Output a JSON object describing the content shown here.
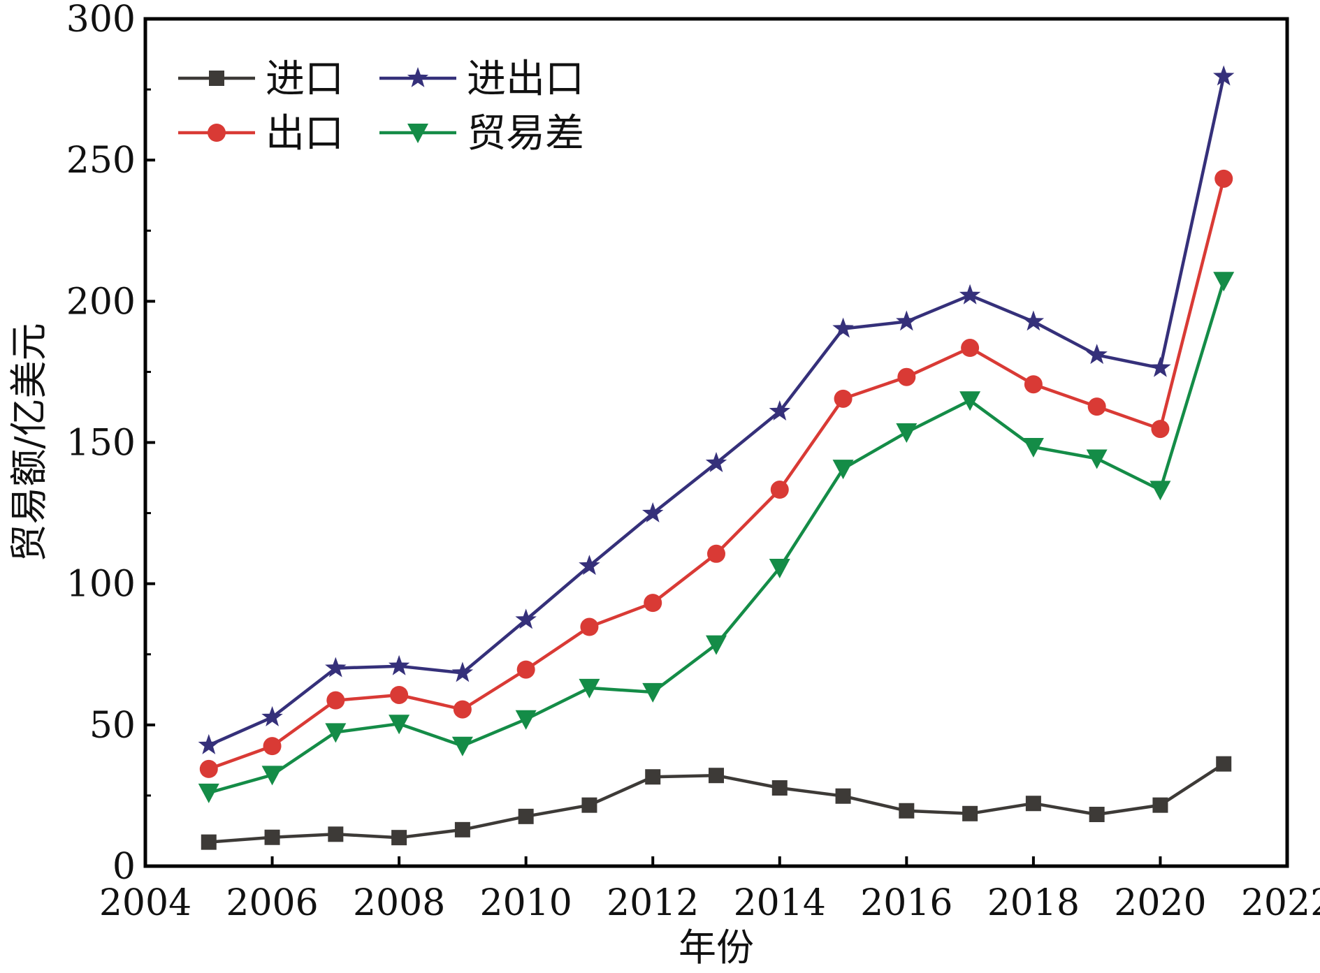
{
  "chart_data": {
    "type": "line",
    "title": "",
    "xlabel": "年份",
    "ylabel": "贸易额/亿美元",
    "xlim": [
      2004,
      2022
    ],
    "ylim": [
      0,
      300
    ],
    "xticks": [
      2004,
      2006,
      2008,
      2010,
      2012,
      2014,
      2016,
      2018,
      2020,
      2022
    ],
    "yticks": [
      0,
      50,
      100,
      150,
      200,
      250,
      300
    ],
    "grid": false,
    "legend_position": "top-left",
    "x": [
      2005,
      2006,
      2007,
      2008,
      2009,
      2010,
      2011,
      2012,
      2013,
      2014,
      2015,
      2016,
      2017,
      2018,
      2019,
      2020,
      2021
    ],
    "series": [
      {
        "name": "进口",
        "color": "#3d3a37",
        "marker": "square",
        "values": [
          8.5,
          10.2,
          11.3,
          10.1,
          12.9,
          17.6,
          21.6,
          31.6,
          32.1,
          27.7,
          24.8,
          19.6,
          18.6,
          22.2,
          18.3,
          21.6,
          36.2
        ]
      },
      {
        "name": "出口",
        "color": "#d93a35",
        "marker": "circle",
        "values": [
          34.4,
          42.5,
          58.7,
          60.6,
          55.5,
          69.6,
          84.7,
          93.2,
          110.6,
          133.3,
          165.5,
          173.2,
          183.5,
          170.6,
          162.7,
          154.8,
          243.4
        ]
      },
      {
        "name": "进出口",
        "color": "#35307a",
        "marker": "star",
        "values": [
          42.8,
          52.7,
          70.1,
          70.8,
          68.4,
          87.2,
          106.3,
          124.9,
          142.7,
          161.0,
          190.3,
          192.8,
          202.1,
          192.8,
          181.0,
          176.4,
          279.6
        ]
      },
      {
        "name": "贸易差",
        "color": "#148c47",
        "marker": "triangle-down",
        "values": [
          26.0,
          32.3,
          47.4,
          50.4,
          42.6,
          52.0,
          63.1,
          61.6,
          78.5,
          105.6,
          140.7,
          153.6,
          164.9,
          148.4,
          144.3,
          133.2,
          207.2
        ]
      }
    ],
    "legend_order": [
      "进口",
      "进出口",
      "出口",
      "贸易差"
    ]
  }
}
